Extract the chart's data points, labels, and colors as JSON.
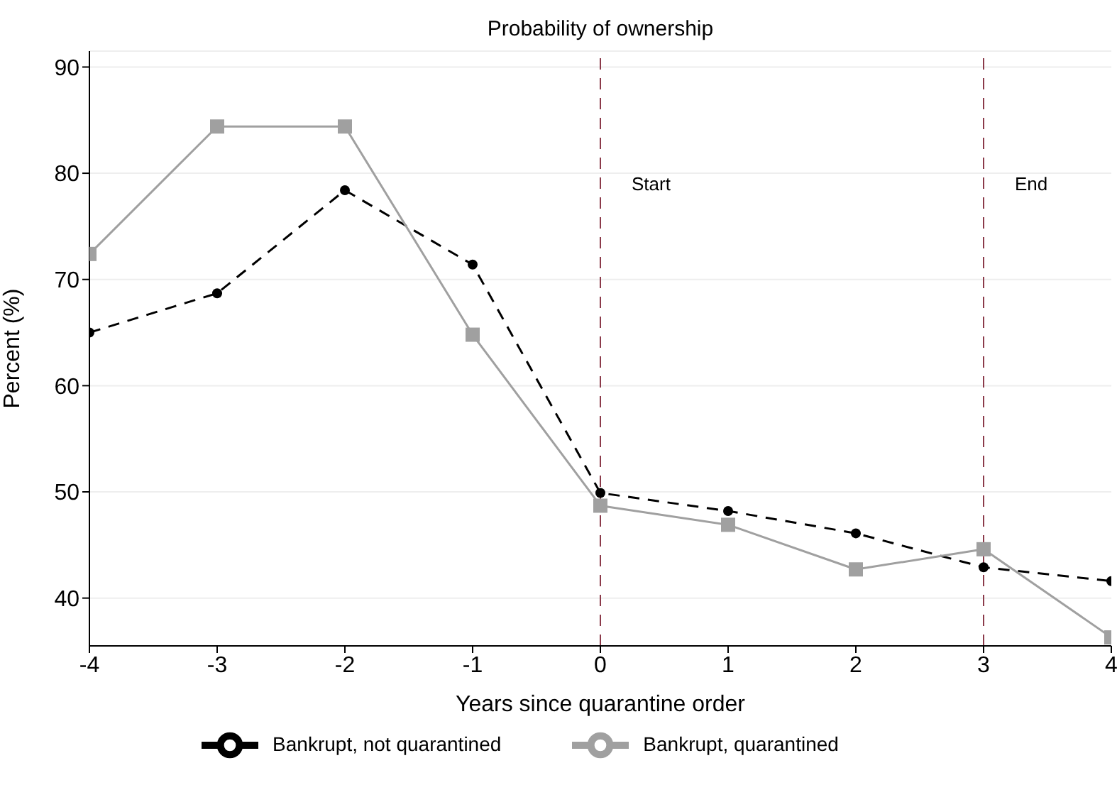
{
  "chart_data": {
    "type": "line",
    "title": "Probability of ownership",
    "xlabel": "Years since quarantine order",
    "ylabel": "Percent (%)",
    "x": [
      -4,
      -3,
      -2,
      -1,
      0,
      1,
      2,
      3,
      4
    ],
    "xlim": [
      -4,
      4
    ],
    "xticks": [
      -4,
      -3,
      -2,
      -1,
      0,
      1,
      2,
      3,
      4
    ],
    "ylim": [
      35.5,
      91.5
    ],
    "yticks": [
      40,
      50,
      60,
      70,
      80,
      90
    ],
    "grid": "y",
    "legend": "bottom",
    "series": [
      {
        "name": "Bankrupt, not quarantined",
        "color": "#000000",
        "line_style": "dashed",
        "marker": "circle",
        "values": [
          65.0,
          68.7,
          78.4,
          71.4,
          49.9,
          48.2,
          46.1,
          42.9,
          41.6
        ]
      },
      {
        "name": "Bankrupt, quarantined",
        "color": "#a0a0a0",
        "line_style": "solid",
        "marker": "square",
        "values": [
          72.4,
          84.4,
          84.4,
          64.8,
          48.7,
          46.9,
          42.7,
          44.6,
          36.3
        ]
      }
    ],
    "ref_lines": [
      {
        "axis": "x",
        "value": 0,
        "label": "Start",
        "color": "#8b3a4a",
        "line_style": "dashed"
      },
      {
        "axis": "x",
        "value": 3,
        "label": "End",
        "color": "#8b3a4a",
        "line_style": "dashed"
      }
    ]
  }
}
